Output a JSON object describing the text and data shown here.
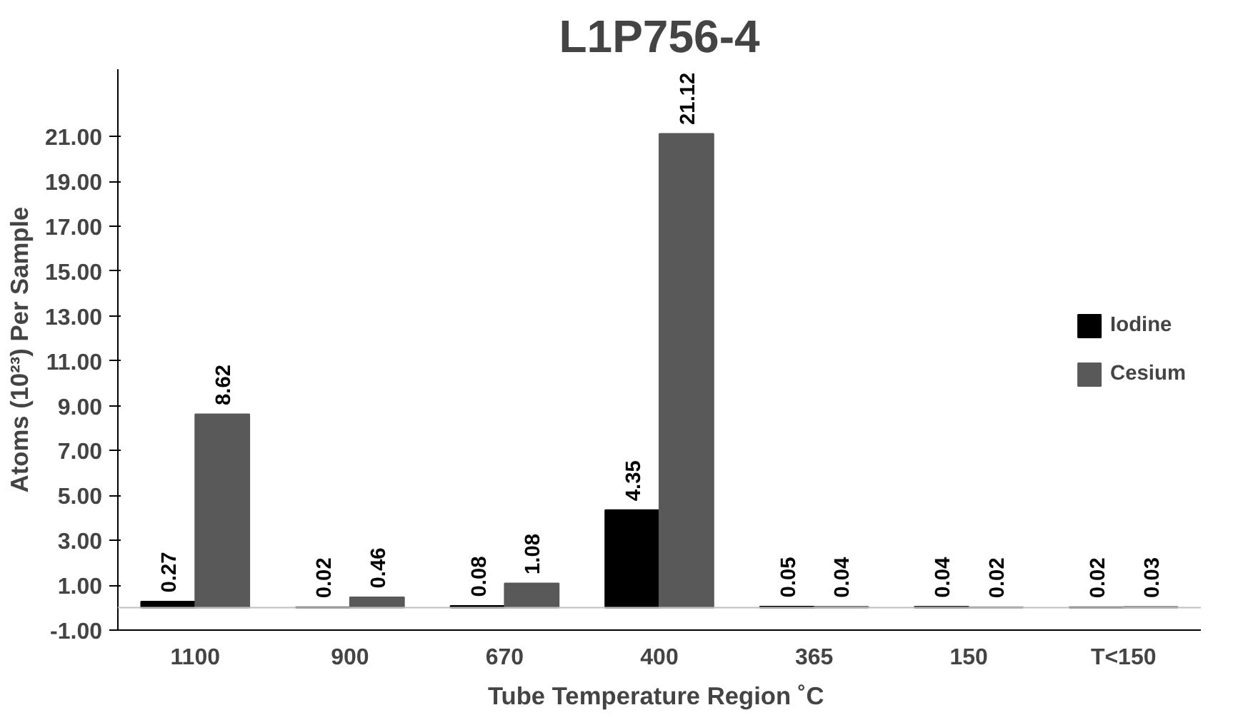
{
  "chart_data": {
    "type": "bar",
    "title": "L1P756-4",
    "xlabel": "Tube  Temperature Region ˚C",
    "ylabel": "Atoms (10²³) Per Sample",
    "categories": [
      "1100",
      "900",
      "670",
      "400",
      "365",
      "150",
      "T<150"
    ],
    "series": [
      {
        "name": "Iodine",
        "color": "#000000",
        "values": [
          0.27,
          0.02,
          0.08,
          4.35,
          0.05,
          0.04,
          0.02
        ]
      },
      {
        "name": "Cesium",
        "color": "#595959",
        "values": [
          8.62,
          0.46,
          1.08,
          21.12,
          0.04,
          0.02,
          0.03
        ]
      }
    ],
    "ylim": [
      -1,
      24
    ],
    "yticks": [
      {
        "value": -1,
        "label": "-1.00"
      },
      {
        "value": 1,
        "label": "1.00"
      },
      {
        "value": 3,
        "label": "3.00"
      },
      {
        "value": 5,
        "label": "5.00"
      },
      {
        "value": 7,
        "label": "7.00"
      },
      {
        "value": 9,
        "label": "9.00"
      },
      {
        "value": 11,
        "label": "11.00"
      },
      {
        "value": 13,
        "label": "13.00"
      },
      {
        "value": 15,
        "label": "15.00"
      },
      {
        "value": 17,
        "label": "17.00"
      },
      {
        "value": 19,
        "label": "19.00"
      },
      {
        "value": 21,
        "label": "21.00"
      }
    ],
    "data_labels": true,
    "grid": false,
    "legend": "right"
  }
}
